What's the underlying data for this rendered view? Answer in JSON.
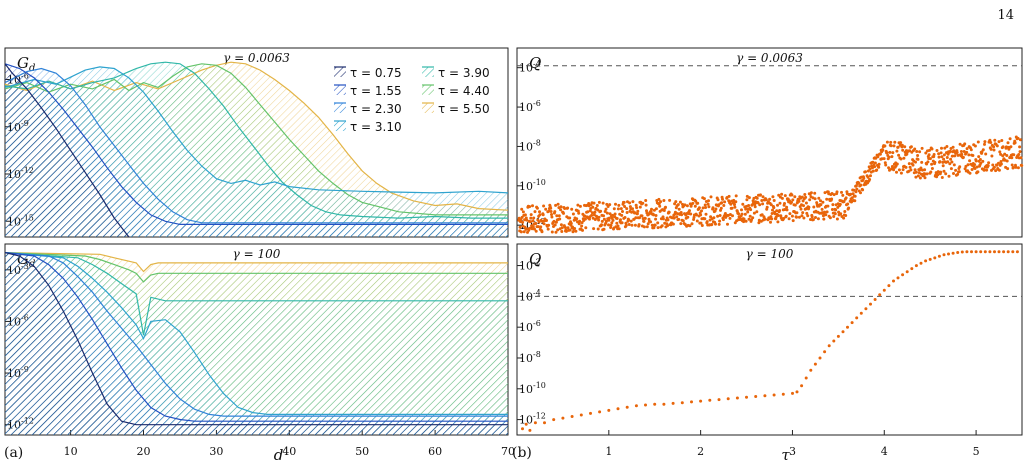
{
  "page_number": "14",
  "panel_labels": [
    "(a)",
    "(b)"
  ],
  "colors": {
    "0.75": "#1a2a6c",
    "1.55": "#2150c2",
    "2.30": "#2f82d8",
    "3.10": "#2ea3cf",
    "3.90": "#30b7a8",
    "4.40": "#64c36a",
    "5.50": "#e3b446",
    "scatter": "#e8650a",
    "dashed": "#555555"
  },
  "chart_data": [
    {
      "id": "a-top",
      "type": "area",
      "annotation": "γ = 0.0063",
      "ylabel": "G_d",
      "xlabel": "",
      "xlim": [
        1,
        70
      ],
      "ylog": true,
      "ylim_exp": [
        -16,
        -4
      ],
      "ytick_exps": [
        -6,
        -9,
        -12,
        -15
      ],
      "xticks": [],
      "series": [
        {
          "name": "τ = 0.75",
          "tau": "0.75",
          "x": [
            1,
            2,
            4,
            6,
            8,
            10,
            12,
            14,
            16,
            18
          ],
          "log10y": [
            -5.0,
            -5.6,
            -6.6,
            -7.8,
            -9.1,
            -10.5,
            -11.9,
            -13.3,
            -14.8,
            -16
          ]
        },
        {
          "name": "τ = 1.55",
          "tau": "1.55",
          "x": [
            1,
            3,
            5,
            7,
            9,
            11,
            13,
            15,
            17,
            19,
            21,
            23,
            25,
            30,
            40,
            50,
            60,
            64,
            66,
            70
          ],
          "log10y": [
            -5.0,
            -5.3,
            -5.9,
            -6.8,
            -7.9,
            -9.1,
            -10.3,
            -11.6,
            -12.8,
            -13.8,
            -14.6,
            -15.0,
            -15.2,
            -15.2,
            -15.2,
            -15.2,
            -15.2,
            -15.2,
            -15.2,
            -15.2
          ]
        },
        {
          "name": "τ = 2.30",
          "tau": "2.30",
          "x": [
            1,
            4,
            6,
            8,
            10,
            12,
            14,
            16,
            18,
            20,
            22,
            24,
            26,
            28,
            30,
            34,
            40,
            50,
            60,
            64,
            66,
            70
          ],
          "log10y": [
            -6.2,
            -5.5,
            -5.3,
            -5.6,
            -6.4,
            -7.6,
            -9.0,
            -10.2,
            -11.4,
            -12.6,
            -13.6,
            -14.4,
            -14.9,
            -15.1,
            -15.1,
            -15.1,
            -15.1,
            -15.1,
            -15.1,
            -15.1,
            -15.1,
            -15.1
          ]
        },
        {
          "name": "τ = 3.10",
          "tau": "3.10",
          "x": [
            1,
            5,
            8,
            12,
            14,
            16,
            18,
            20,
            22,
            24,
            26,
            28,
            30,
            32,
            34,
            36,
            38,
            40,
            44,
            50,
            60,
            66,
            70
          ],
          "log10y": [
            -6.5,
            -6.0,
            -6.3,
            -5.4,
            -5.2,
            -5.3,
            -5.9,
            -6.8,
            -8.0,
            -9.3,
            -10.5,
            -11.5,
            -12.3,
            -12.6,
            -12.4,
            -12.7,
            -12.5,
            -12.8,
            -13.0,
            -13.1,
            -13.2,
            -13.1,
            -13.2
          ]
        },
        {
          "name": "τ = 3.90",
          "tau": "3.90",
          "x": [
            1,
            4,
            7,
            10,
            13,
            16,
            19,
            21,
            23,
            25,
            27,
            29,
            31,
            33,
            35,
            37,
            39,
            41,
            43,
            45,
            47,
            50,
            55,
            60,
            65,
            70
          ],
          "log10y": [
            -6.4,
            -6.6,
            -6.1,
            -6.6,
            -6.2,
            -5.9,
            -5.3,
            -5.0,
            -4.9,
            -5.0,
            -5.6,
            -6.6,
            -7.7,
            -9.0,
            -10.2,
            -11.4,
            -12.5,
            -13.3,
            -14.0,
            -14.4,
            -14.6,
            -14.7,
            -14.8,
            -14.7,
            -14.8,
            -14.8
          ]
        },
        {
          "name": "τ = 4.40",
          "tau": "4.40",
          "x": [
            1,
            4,
            7,
            10,
            13,
            16,
            18,
            20,
            22,
            24,
            26,
            28,
            30,
            32,
            34,
            36,
            38,
            40,
            42,
            44,
            46,
            48,
            50,
            55,
            60,
            65,
            70
          ],
          "log10y": [
            -6.6,
            -6.2,
            -6.8,
            -6.3,
            -6.6,
            -6.0,
            -6.7,
            -6.2,
            -6.5,
            -5.8,
            -5.2,
            -5.0,
            -5.1,
            -5.6,
            -6.5,
            -7.6,
            -8.7,
            -9.8,
            -10.8,
            -11.8,
            -12.6,
            -13.3,
            -13.8,
            -14.4,
            -14.6,
            -14.6,
            -14.6
          ]
        },
        {
          "name": "τ = 5.50",
          "tau": "5.50",
          "x": [
            1,
            4,
            7,
            10,
            13,
            16,
            19,
            22,
            25,
            28,
            30,
            32,
            34,
            36,
            38,
            40,
            42,
            44,
            46,
            48,
            50,
            52,
            54,
            57,
            60,
            63,
            66,
            70
          ],
          "log10y": [
            -6.3,
            -6.7,
            -6.1,
            -6.6,
            -6.1,
            -6.7,
            -6.2,
            -6.6,
            -6.0,
            -5.4,
            -5.1,
            -4.9,
            -5.0,
            -5.4,
            -6.0,
            -6.7,
            -7.5,
            -8.4,
            -9.5,
            -10.7,
            -11.8,
            -12.6,
            -13.2,
            -13.7,
            -14.0,
            -13.9,
            -14.2,
            -14.3
          ]
        }
      ]
    },
    {
      "id": "a-bottom",
      "type": "area",
      "annotation": "γ = 100",
      "ylabel": "G_d",
      "xlabel": "d",
      "xlim": [
        1,
        70
      ],
      "ylog": true,
      "ylim_exp": [
        -12.6,
        -1.5
      ],
      "ytick_exps": [
        -3,
        -6,
        -9,
        -12
      ],
      "xticks": [
        10,
        20,
        30,
        40,
        50,
        60,
        70
      ],
      "series": [
        {
          "name": "τ = 0.75",
          "tau": "0.75",
          "x": [
            1,
            3,
            5,
            7,
            9,
            11,
            13,
            15,
            17,
            19,
            20,
            30,
            40,
            50,
            60,
            70
          ],
          "log10y": [
            -2.0,
            -2.2,
            -2.8,
            -3.9,
            -5.4,
            -7.1,
            -9.0,
            -10.8,
            -11.8,
            -12.0,
            -12.0,
            -12.0,
            -12.0,
            -12.0,
            -12.0,
            -12.0
          ]
        },
        {
          "name": "τ = 1.55",
          "tau": "1.55",
          "x": [
            1,
            5,
            7,
            9,
            11,
            13,
            15,
            17,
            19,
            21,
            23,
            25,
            27,
            29,
            40,
            50,
            60,
            70
          ],
          "log10y": [
            -2.0,
            -2.2,
            -2.7,
            -3.5,
            -4.6,
            -5.9,
            -7.3,
            -8.7,
            -10.0,
            -11.0,
            -11.5,
            -11.7,
            -11.8,
            -11.8,
            -11.8,
            -11.8,
            -11.8,
            -11.8
          ]
        },
        {
          "name": "τ = 2.30",
          "tau": "2.30",
          "x": [
            1,
            7,
            9,
            11,
            13,
            15,
            17,
            19,
            21,
            23,
            25,
            27,
            29,
            31,
            35,
            40,
            50,
            60,
            70
          ],
          "log10y": [
            -2.0,
            -2.2,
            -2.6,
            -3.4,
            -4.3,
            -5.4,
            -6.4,
            -7.4,
            -8.5,
            -9.6,
            -10.5,
            -11.1,
            -11.4,
            -11.5,
            -11.5,
            -11.5,
            -11.5,
            -11.5,
            -11.5
          ]
        },
        {
          "name": "τ = 3.10",
          "tau": "3.10",
          "x": [
            1,
            9,
            11,
            13,
            15,
            17,
            19,
            20,
            21,
            23,
            25,
            27,
            29,
            31,
            33,
            35,
            37,
            40,
            50,
            60,
            70
          ],
          "log10y": [
            -2.0,
            -2.3,
            -2.8,
            -3.5,
            -4.3,
            -5.2,
            -6.2,
            -7.0,
            -6.0,
            -5.9,
            -6.6,
            -7.8,
            -9.1,
            -10.2,
            -11.0,
            -11.3,
            -11.4,
            -11.4,
            -11.4,
            -11.4,
            -11.4
          ]
        },
        {
          "name": "τ = 3.90",
          "tau": "3.90",
          "x": [
            1,
            11,
            13,
            15,
            17,
            19,
            20,
            21,
            23,
            25,
            30,
            35,
            40,
            50,
            60,
            70
          ],
          "log10y": [
            -2.0,
            -2.3,
            -2.7,
            -3.2,
            -3.8,
            -4.4,
            -6.8,
            -4.6,
            -4.8,
            -4.8,
            -4.8,
            -4.8,
            -4.8,
            -4.8,
            -4.8,
            -4.8
          ]
        },
        {
          "name": "τ = 4.40",
          "tau": "4.40",
          "x": [
            1,
            12,
            14,
            16,
            18,
            19,
            20,
            21,
            22,
            24,
            26,
            30,
            40,
            50,
            60,
            70
          ],
          "log10y": [
            -2.0,
            -2.2,
            -2.4,
            -2.7,
            -3.0,
            -3.2,
            -3.7,
            -3.3,
            -3.2,
            -3.2,
            -3.2,
            -3.2,
            -3.2,
            -3.2,
            -3.2,
            -3.2
          ]
        },
        {
          "name": "τ = 5.50",
          "tau": "5.50",
          "x": [
            1,
            14,
            16,
            18,
            19,
            20,
            21,
            22,
            24,
            30,
            40,
            50,
            60,
            70
          ],
          "log10y": [
            -2.0,
            -2.1,
            -2.3,
            -2.5,
            -2.6,
            -3.1,
            -2.7,
            -2.6,
            -2.6,
            -2.6,
            -2.6,
            -2.6,
            -2.6,
            -2.6
          ]
        }
      ]
    },
    {
      "id": "b-top",
      "type": "scatter",
      "annotation": "γ = 0.0063",
      "ylabel": "Q",
      "xlabel": "",
      "xlim": [
        0,
        5.5
      ],
      "ylog": true,
      "ylim_exp": [
        -12.6,
        -3.0
      ],
      "ytick_exps": [
        -4,
        -6,
        -8,
        -10,
        -12
      ],
      "dashed_exp": -3.9,
      "xticks": []
    },
    {
      "id": "b-bottom",
      "type": "scatter",
      "annotation": "γ = 100",
      "ylabel": "Q",
      "xlabel": "τ",
      "xlim": [
        0,
        5.5
      ],
      "ylog": true,
      "ylim_exp": [
        -13.0,
        -0.6
      ],
      "ytick_exps": [
        -2,
        -4,
        -6,
        -8,
        -10,
        -12
      ],
      "dashed_exp": -4.0,
      "xticks": [
        1,
        2,
        3,
        4,
        5
      ],
      "points": [
        [
          0.06,
          -12.6
        ],
        [
          0.1,
          -12.3
        ],
        [
          0.14,
          -12.7
        ],
        [
          0.2,
          -12.2
        ],
        [
          0.3,
          -12.2
        ],
        [
          0.4,
          -12.0
        ],
        [
          0.5,
          -11.9
        ],
        [
          0.6,
          -11.8
        ],
        [
          0.7,
          -11.7
        ],
        [
          0.8,
          -11.6
        ],
        [
          0.9,
          -11.5
        ],
        [
          1.0,
          -11.4
        ],
        [
          1.1,
          -11.3
        ],
        [
          1.2,
          -11.2
        ],
        [
          1.3,
          -11.1
        ],
        [
          1.4,
          -11.05
        ],
        [
          1.5,
          -11.0
        ],
        [
          1.6,
          -11.0
        ],
        [
          1.7,
          -10.95
        ],
        [
          1.8,
          -10.9
        ],
        [
          1.9,
          -10.85
        ],
        [
          2.0,
          -10.8
        ],
        [
          2.1,
          -10.75
        ],
        [
          2.2,
          -10.7
        ],
        [
          2.3,
          -10.65
        ],
        [
          2.4,
          -10.6
        ],
        [
          2.5,
          -10.55
        ],
        [
          2.6,
          -10.5
        ],
        [
          2.7,
          -10.45
        ],
        [
          2.8,
          -10.4
        ],
        [
          2.9,
          -10.35
        ],
        [
          3.0,
          -10.3
        ],
        [
          3.05,
          -10.2
        ],
        [
          3.1,
          -9.8
        ],
        [
          3.15,
          -9.3
        ],
        [
          3.2,
          -8.8
        ],
        [
          3.25,
          -8.4
        ],
        [
          3.3,
          -8.0
        ],
        [
          3.35,
          -7.6
        ],
        [
          3.4,
          -7.2
        ],
        [
          3.45,
          -6.9
        ],
        [
          3.5,
          -6.6
        ],
        [
          3.55,
          -6.3
        ],
        [
          3.6,
          -6.0
        ],
        [
          3.65,
          -5.7
        ],
        [
          3.7,
          -5.4
        ],
        [
          3.75,
          -5.1
        ],
        [
          3.8,
          -4.8
        ],
        [
          3.85,
          -4.5
        ],
        [
          3.9,
          -4.2
        ],
        [
          3.95,
          -3.9
        ],
        [
          4.0,
          -3.6
        ],
        [
          4.05,
          -3.3
        ],
        [
          4.1,
          -3.0
        ],
        [
          4.15,
          -2.8
        ],
        [
          4.2,
          -2.6
        ],
        [
          4.25,
          -2.4
        ],
        [
          4.3,
          -2.2
        ],
        [
          4.35,
          -2.0
        ],
        [
          4.4,
          -1.85
        ],
        [
          4.45,
          -1.7
        ],
        [
          4.5,
          -1.6
        ],
        [
          4.55,
          -1.5
        ],
        [
          4.6,
          -1.4
        ],
        [
          4.65,
          -1.3
        ],
        [
          4.7,
          -1.25
        ],
        [
          4.75,
          -1.2
        ],
        [
          4.8,
          -1.15
        ],
        [
          4.85,
          -1.12
        ],
        [
          4.9,
          -1.1
        ],
        [
          4.95,
          -1.1
        ],
        [
          5.0,
          -1.1
        ],
        [
          5.05,
          -1.1
        ],
        [
          5.1,
          -1.1
        ],
        [
          5.15,
          -1.1
        ],
        [
          5.2,
          -1.1
        ],
        [
          5.25,
          -1.1
        ],
        [
          5.3,
          -1.1
        ],
        [
          5.35,
          -1.1
        ],
        [
          5.4,
          -1.1
        ],
        [
          5.45,
          -1.1
        ]
      ]
    }
  ]
}
